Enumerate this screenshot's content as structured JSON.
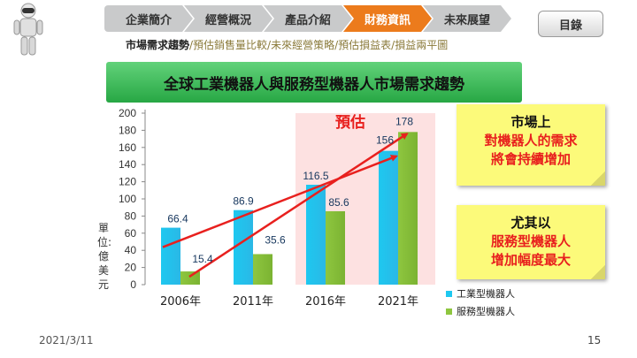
{
  "colors": {
    "nav_active": "#ec7b1c",
    "nav_inactive": "#c9cacb",
    "banner": "#3cbc57",
    "series_industrial": "#1ec8f0",
    "series_service": "#8ec63f",
    "trend_arrow": "#e8201e",
    "forecast_zone": "#fde1e1",
    "note": "#fcfa7a"
  },
  "nav": {
    "tabs": [
      {
        "label": "企業簡介",
        "active": false
      },
      {
        "label": "經營概況",
        "active": false
      },
      {
        "label": "產品介紹",
        "active": false
      },
      {
        "label": "財務資訊",
        "active": true
      },
      {
        "label": "未來展望",
        "active": false
      }
    ],
    "menu_label": "目錄"
  },
  "breadcrumb": {
    "current": "市場需求趨勢",
    "rest": "/預估銷售量比較/未來經營策略/預估損益表/損益兩平圖"
  },
  "title": "全球工業機器人與服務型機器人市場需求趨勢",
  "y_unit": "單位:億美元",
  "forecast_label": "預估",
  "notes": {
    "note1": [
      "市場上",
      "對機器人的需求",
      "將會持續增加"
    ],
    "note2": [
      "尤其以",
      "服務型機器人",
      "增加幅度最大"
    ]
  },
  "legend": [
    "工業型機器人",
    "服務型機器人"
  ],
  "footer": {
    "date": "2021/3/11",
    "page": "15"
  },
  "chart_data": {
    "type": "bar",
    "categories": [
      "2006年",
      "2011年",
      "2016年",
      "2021年"
    ],
    "series": [
      {
        "name": "工業型機器人",
        "values": [
          66.4,
          86.9,
          116.5,
          156
        ]
      },
      {
        "name": "服務型機器人",
        "values": [
          15.4,
          35.6,
          85.6,
          178
        ]
      }
    ],
    "ylim": [
      0,
      200
    ],
    "yticks": [
      0,
      20,
      40,
      60,
      80,
      100,
      120,
      140,
      160,
      180,
      200
    ],
    "forecast_from": "2016年",
    "trend_arrows": [
      {
        "from": 66.4,
        "to": 156
      },
      {
        "from": 15.4,
        "to": 178
      }
    ],
    "legend_position": "bottom-right",
    "grid": false
  }
}
